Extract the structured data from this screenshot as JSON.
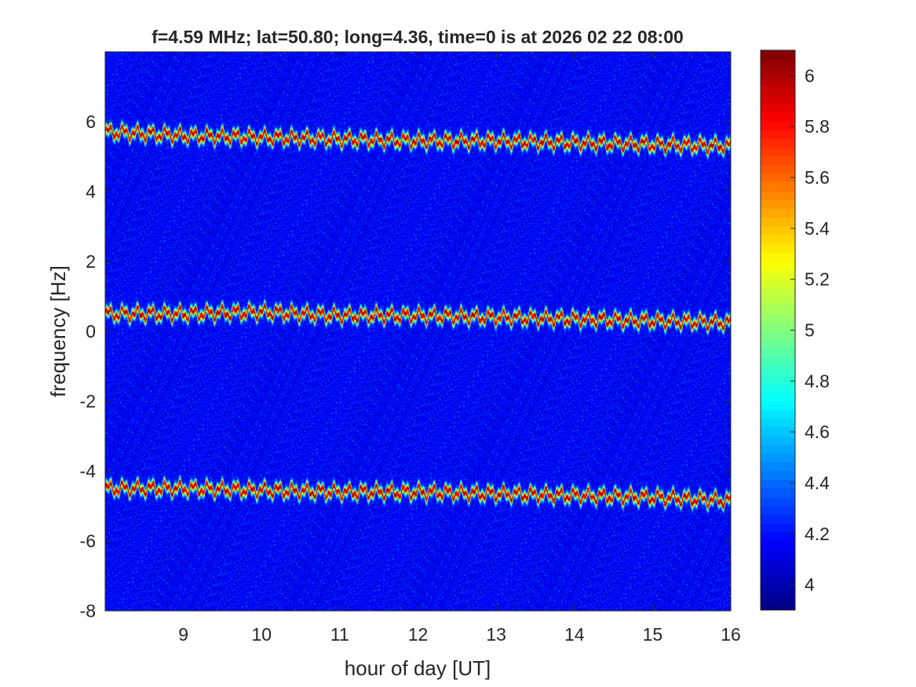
{
  "chart_data": {
    "type": "heatmap",
    "title": "f=4.59 MHz;  lat=50.80; long=4.36, time=0 is at 2026 02 22 08:00",
    "xlabel": "hour of day [UT]",
    "ylabel": "frequency [Hz]",
    "xlim": [
      8,
      16
    ],
    "ylim": [
      -8,
      8
    ],
    "xticks": [
      9,
      10,
      11,
      12,
      13,
      14,
      15,
      16
    ],
    "xtick_labels": [
      "9",
      "10",
      "11",
      "12",
      "13",
      "14",
      "15",
      "16"
    ],
    "yticks": [
      -8,
      -6,
      -4,
      -2,
      0,
      2,
      4,
      6
    ],
    "ytick_labels": [
      "-8",
      "-6",
      "-4",
      "-2",
      "0",
      "2",
      "4",
      "6"
    ],
    "colormap": "jet",
    "clim": [
      3.9,
      6.1
    ],
    "colorbar_ticks": [
      4,
      4.2,
      4.4,
      4.6,
      4.8,
      5,
      5.2,
      5.4,
      5.6,
      5.8,
      6
    ],
    "colorbar_tick_labels": [
      "4",
      "4.2",
      "4.4",
      "4.6",
      "4.8",
      "5",
      "5.2",
      "5.4",
      "5.6",
      "5.8",
      "6"
    ],
    "grid": false,
    "series": [
      {
        "x": [
          8.1,
          9,
          10,
          11,
          12,
          13,
          14,
          15,
          16
        ],
        "y": [
          5.7,
          5.6,
          5.55,
          5.5,
          5.45,
          5.45,
          5.4,
          5.35,
          5.3
        ]
      },
      {
        "x": [
          8.1,
          9,
          10,
          11,
          12,
          13,
          14,
          15,
          16
        ],
        "y": [
          0.5,
          0.5,
          0.55,
          0.45,
          0.45,
          0.4,
          0.35,
          0.3,
          0.25
        ]
      },
      {
        "x": [
          8.1,
          9,
          10,
          11,
          12,
          13,
          14,
          15,
          16
        ],
        "y": [
          -4.5,
          -4.5,
          -4.55,
          -4.6,
          -4.6,
          -4.65,
          -4.7,
          -4.75,
          -4.85
        ]
      }
    ]
  }
}
